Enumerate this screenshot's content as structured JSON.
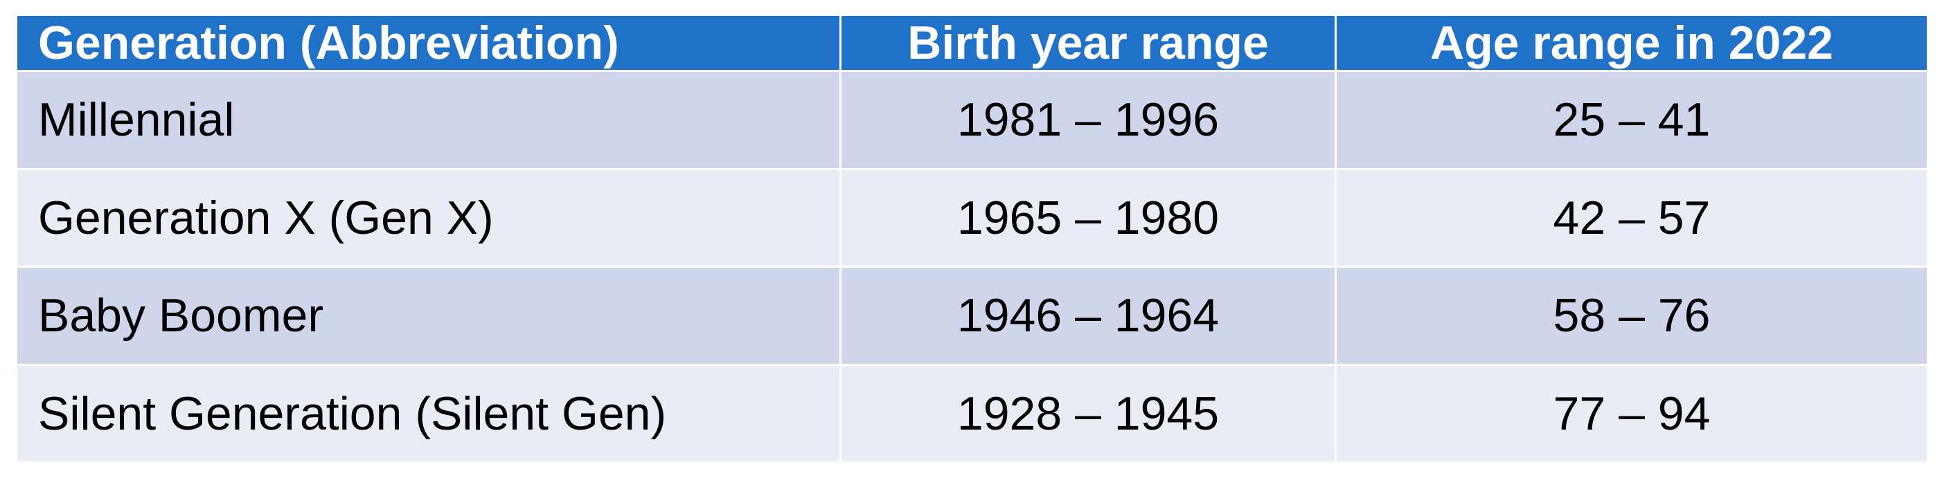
{
  "table": {
    "header": [
      "Generation (Abbreviation)",
      "Birth year range",
      "Age range in 2022"
    ],
    "rows": [
      [
        "Millennial",
        "1981 – 1996",
        "25 – 41"
      ],
      [
        "Generation X (Gen X)",
        "1965 – 1980",
        "42 – 57"
      ],
      [
        "Baby Boomer",
        "1946 – 1964",
        "58 – 76"
      ],
      [
        "Silent Generation (Silent Gen)",
        "1928 – 1945",
        "77 – 94"
      ]
    ]
  }
}
